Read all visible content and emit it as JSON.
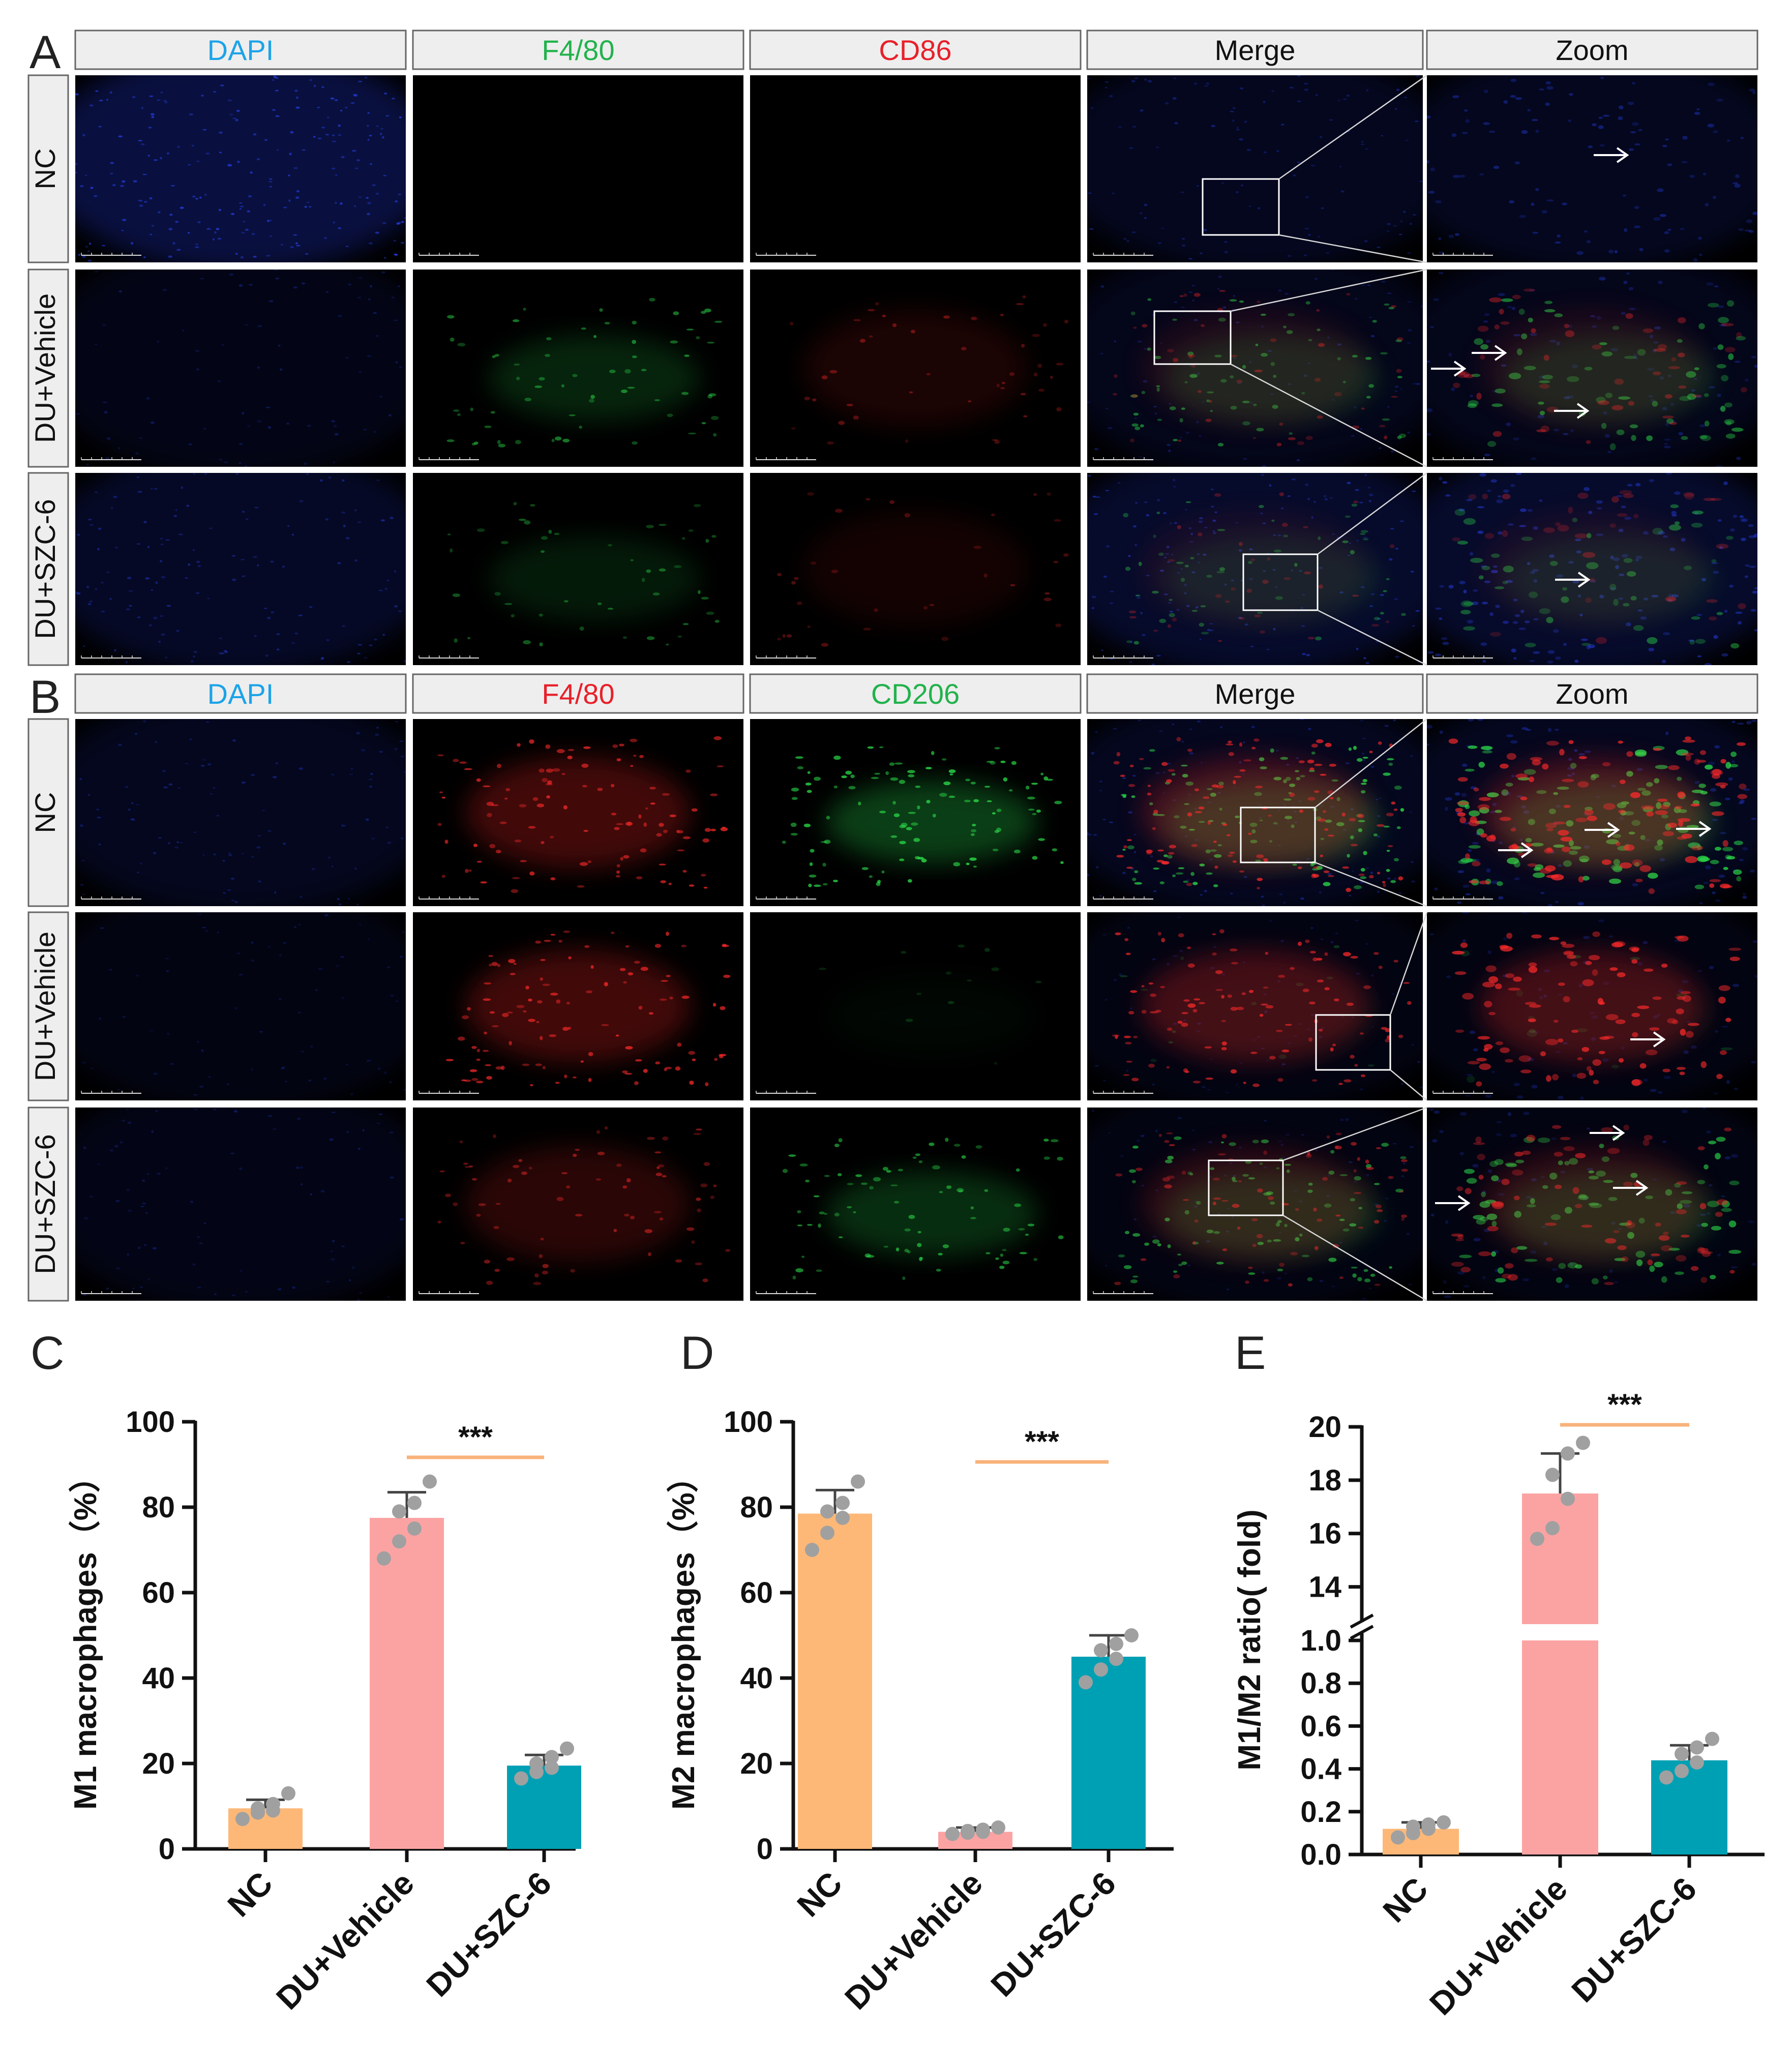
{
  "panels": {
    "A": {
      "letter": "A",
      "columns": [
        {
          "label": "DAPI",
          "color": "#1ca3e8"
        },
        {
          "label": "F4/80",
          "color": "#22b24c"
        },
        {
          "label": "CD86",
          "color": "#e8202a"
        },
        {
          "label": "Merge",
          "color": "#111111"
        },
        {
          "label": "Zoom",
          "color": "#111111"
        }
      ],
      "rows": [
        "NC",
        "DU+Vehicle",
        "DU+SZC-6"
      ]
    },
    "B": {
      "letter": "B",
      "columns": [
        {
          "label": "DAPI",
          "color": "#1ca3e8"
        },
        {
          "label": "F4/80",
          "color": "#e8202a"
        },
        {
          "label": "CD206",
          "color": "#22b24c"
        },
        {
          "label": "Merge",
          "color": "#111111"
        },
        {
          "label": "Zoom",
          "color": "#111111"
        }
      ],
      "rows": [
        "NC",
        "DU+Vehicle",
        "DU+SZC-6"
      ]
    }
  },
  "colors": {
    "NC": "#fdb877",
    "DU+Vehicle": "#fba3a3",
    "DU+SZC-6": "#00a0b4",
    "significance_line": "#f8b27a",
    "points": "#a0a0a0"
  },
  "chart_data": [
    {
      "panel": "C",
      "type": "bar",
      "categories": [
        "NC",
        "DU+Vehicle",
        "DU+SZC-6"
      ],
      "values": [
        9.5,
        77.5,
        19.5
      ],
      "errors": [
        2.0,
        6.0,
        2.5
      ],
      "points": [
        [
          7,
          8.5,
          9,
          9.5,
          10.5,
          13
        ],
        [
          68,
          72,
          75,
          79,
          81,
          86
        ],
        [
          16.5,
          18,
          19,
          20,
          21.5,
          23.5
        ]
      ],
      "ylabel": "M1 macrophages（%）",
      "ylim": [
        0,
        100
      ],
      "yticks": [
        "0",
        "20",
        "40",
        "60",
        "80",
        "100"
      ],
      "significance": {
        "from": "DU+Vehicle",
        "to": "DU+SZC-6",
        "label": "***"
      }
    },
    {
      "panel": "D",
      "type": "bar",
      "categories": [
        "NC",
        "DU+Vehicle",
        "DU+SZC-6"
      ],
      "values": [
        78.5,
        4.0,
        45.0
      ],
      "errors": [
        5.5,
        1.0,
        5.0
      ],
      "points": [
        [
          70,
          74,
          77.5,
          79,
          81,
          86
        ],
        [
          3.5,
          3.8,
          4,
          4.2,
          4.5,
          5
        ],
        [
          39,
          42,
          44.5,
          46.5,
          48,
          50
        ]
      ],
      "ylabel": "M2 macrophages（%）",
      "ylim": [
        0,
        100
      ],
      "yticks": [
        "0",
        "20",
        "40",
        "60",
        "80",
        "100"
      ],
      "significance": {
        "from": "DU+Vehicle",
        "to": "DU+SZC-6",
        "label": "***"
      }
    },
    {
      "panel": "E",
      "type": "bar",
      "categories": [
        "NC",
        "DU+Vehicle",
        "DU+SZC-6"
      ],
      "values": [
        0.12,
        17.5,
        0.44
      ],
      "errors": [
        0.03,
        1.5,
        0.07
      ],
      "points": [
        [
          0.08,
          0.1,
          0.12,
          0.13,
          0.14,
          0.15
        ],
        [
          15.8,
          16.2,
          17.3,
          18.2,
          19.0,
          19.4
        ],
        [
          0.36,
          0.39,
          0.43,
          0.47,
          0.5,
          0.54
        ]
      ],
      "ylabel": "M1/M2 ratio( fold)",
      "ylim": [
        0,
        20
      ],
      "axis_break": {
        "lower": [
          0,
          1.0
        ],
        "upper": [
          12.6,
          20
        ]
      },
      "yticks_lower": [
        "0.0",
        "0.2",
        "0.4",
        "0.6",
        "0.8",
        "1.0"
      ],
      "yticks_upper": [
        "14",
        "16",
        "18",
        "20"
      ],
      "significance": {
        "from": "DU+Vehicle",
        "to": "DU+SZC-6",
        "label": "***"
      }
    }
  ]
}
